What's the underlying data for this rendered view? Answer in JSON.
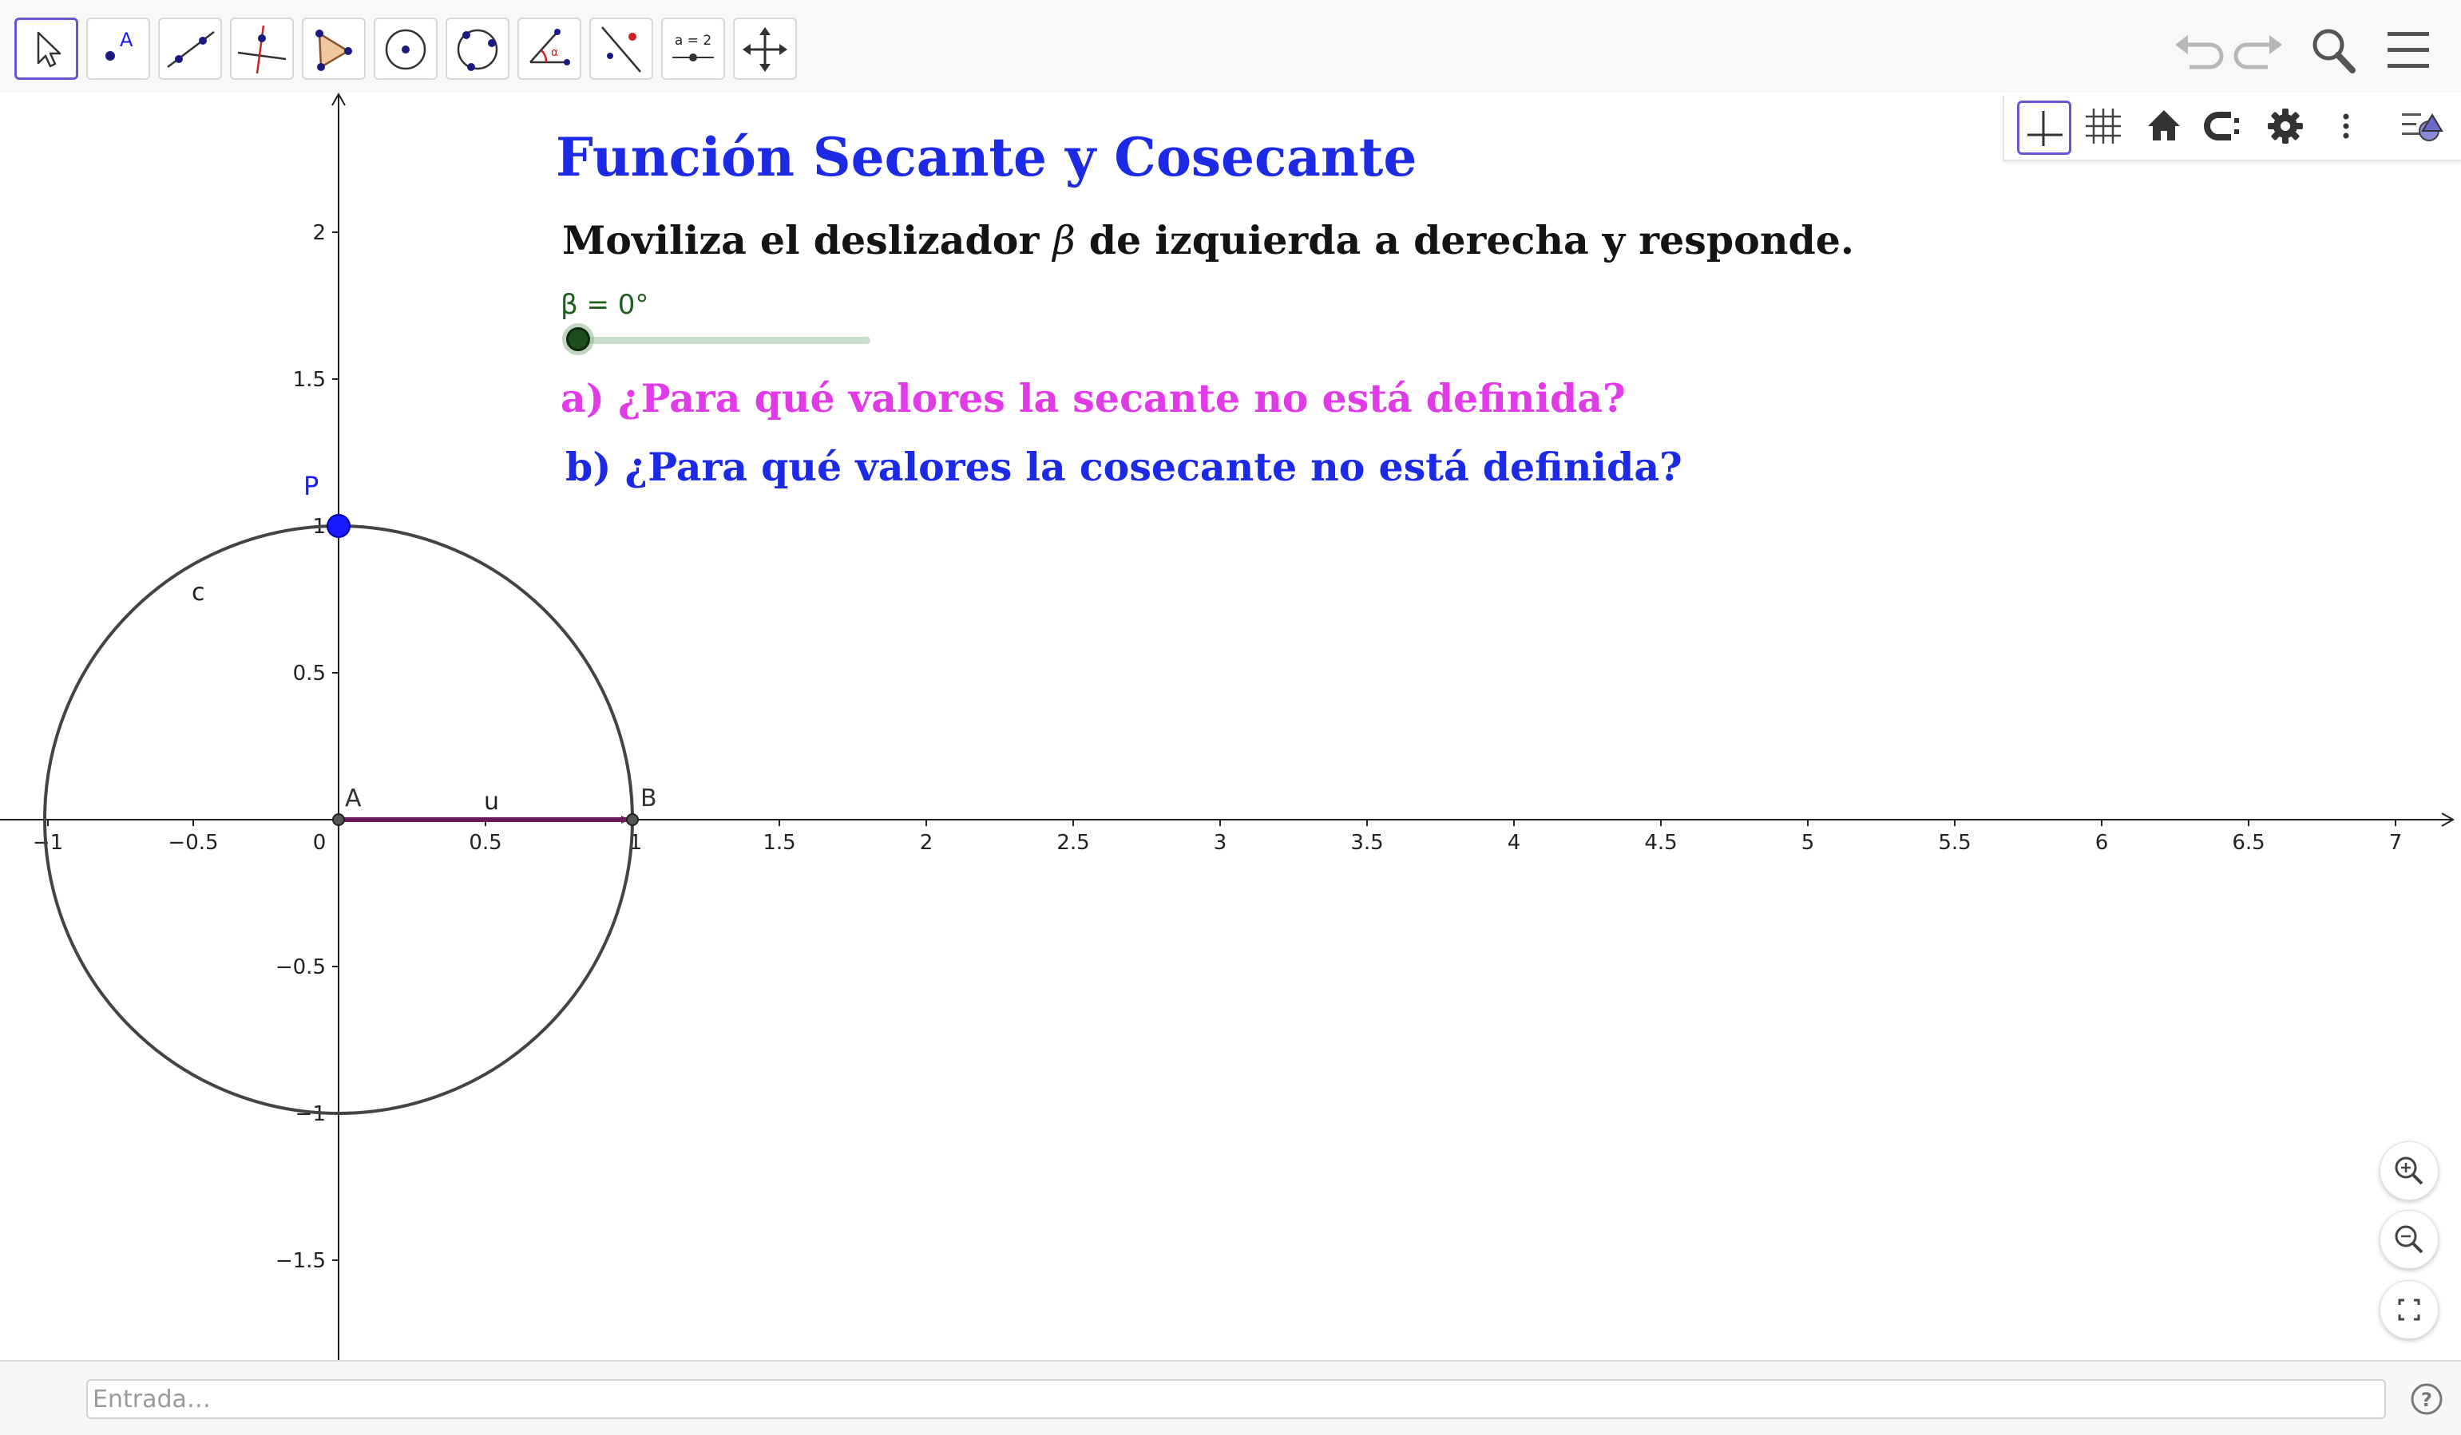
{
  "toolbar": {
    "tools": [
      {
        "name": "move-tool",
        "icon": "arrow-cursor-icon",
        "active": true
      },
      {
        "name": "point-tool",
        "icon": "point-icon"
      },
      {
        "name": "line-tool",
        "icon": "line-through-two-points-icon"
      },
      {
        "name": "perpendicular-line-tool",
        "icon": "perpendicular-line-icon"
      },
      {
        "name": "polygon-tool",
        "icon": "polygon-icon"
      },
      {
        "name": "circle-center-point-tool",
        "icon": "circle-center-point-icon"
      },
      {
        "name": "circle-three-points-tool",
        "icon": "circle-three-points-icon"
      },
      {
        "name": "angle-tool",
        "icon": "angle-icon"
      },
      {
        "name": "reflect-tool",
        "icon": "reflect-about-line-icon"
      },
      {
        "name": "slider-tool",
        "icon": "slider-icon",
        "label": "a = 2"
      },
      {
        "name": "move-graphics-view-tool",
        "icon": "move-arrows-icon"
      }
    ],
    "right": [
      "undo-icon",
      "redo-icon",
      "search-icon",
      "menu-icon"
    ]
  },
  "stylebar": {
    "buttons": [
      "axes-icon",
      "grid-icon",
      "home-icon",
      "point-capturing-icon",
      "gear-icon",
      "more-icon",
      "view-toggle-icon"
    ],
    "active": "axes-icon"
  },
  "text": {
    "title": "Función Secante y Cosecante",
    "instruction_pre": "Moviliza el deslizador",
    "instruction_var": "β",
    "instruction_post": "de izquierda a derecha y responde.",
    "question_a": "a) ¿Para qué valores la secante no está definida?",
    "question_b": "b) ¿Para qué valores la cosecante no está definida?"
  },
  "slider": {
    "label": "β = 0°",
    "value_deg": 0,
    "min_deg": 0,
    "max_deg": 360
  },
  "graph": {
    "x_ticks": [
      "−1",
      "−0.5",
      "0",
      "0.5",
      "1",
      "1.5",
      "2",
      "2.5",
      "3",
      "3.5",
      "4",
      "4.5",
      "5",
      "5.5",
      "6",
      "6.5",
      "7"
    ],
    "y_ticks": [
      "2",
      "1.5",
      "1",
      "0.5",
      "−0.5",
      "−1",
      "−1.5"
    ],
    "objects": {
      "circle_label": "c",
      "point_p_label": "P",
      "point_a_label": "A",
      "point_b_label": "B",
      "vector_label": "u"
    },
    "colors": {
      "point_p": "#1a1aff",
      "vector": "#6a1a5a",
      "circle": "#444444",
      "axes": "#222222"
    }
  },
  "input": {
    "placeholder": "Entrada…"
  },
  "zoom": [
    "zoom-in-icon",
    "zoom-out-icon",
    "fullscreen-icon"
  ],
  "help": "help-icon"
}
